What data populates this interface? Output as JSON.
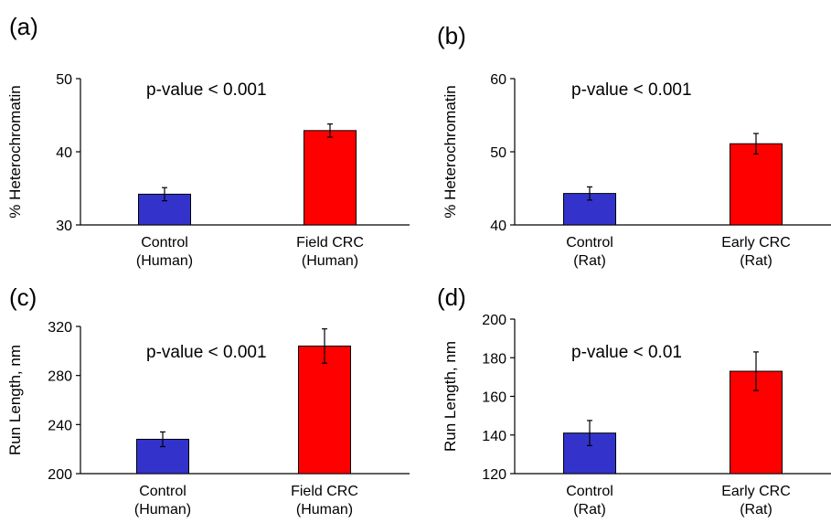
{
  "chart_data": [
    {
      "type": "bar",
      "panel_label": "(a)",
      "annotation": "p-value < 0.001",
      "ylabel": "% Heterochromatin",
      "ylim": [
        30,
        50
      ],
      "yticks": [
        30,
        40,
        50
      ],
      "categories": [
        [
          "Control",
          "(Human)"
        ],
        [
          "Field CRC",
          "(Human)"
        ]
      ],
      "values": [
        34.2,
        42.9
      ],
      "errors": [
        0.9,
        0.9
      ],
      "colors": [
        "#3333cc",
        "#ff0000"
      ]
    },
    {
      "type": "bar",
      "panel_label": "(b)",
      "annotation": "p-value < 0.001",
      "ylabel": "% Heterochromatin",
      "ylim": [
        40,
        60
      ],
      "yticks": [
        40,
        50,
        60
      ],
      "categories": [
        [
          "Control",
          "(Rat)"
        ],
        [
          "Early CRC",
          "(Rat)"
        ]
      ],
      "values": [
        44.3,
        51.1
      ],
      "errors": [
        0.9,
        1.4
      ],
      "colors": [
        "#3333cc",
        "#ff0000"
      ]
    },
    {
      "type": "bar",
      "panel_label": "(c)",
      "annotation": "p-value < 0.001",
      "ylabel": "Run Length, nm",
      "ylim": [
        200,
        320
      ],
      "yticks": [
        200,
        240,
        280,
        320
      ],
      "categories": [
        [
          "Control",
          "(Human)"
        ],
        [
          "Field CRC",
          "(Human)"
        ]
      ],
      "values": [
        228,
        304
      ],
      "errors": [
        6,
        14
      ],
      "colors": [
        "#3333cc",
        "#ff0000"
      ]
    },
    {
      "type": "bar",
      "panel_label": "(d)",
      "annotation": "p-value < 0.01",
      "ylabel": "Run Length, nm",
      "ylim": [
        120,
        200
      ],
      "yticks": [
        120,
        140,
        160,
        180,
        200
      ],
      "categories": [
        [
          "Control",
          "(Rat)"
        ],
        [
          "Early CRC",
          "(Rat)"
        ]
      ],
      "values": [
        141,
        173
      ],
      "errors": [
        6.5,
        10
      ],
      "colors": [
        "#3333cc",
        "#ff0000"
      ]
    }
  ]
}
